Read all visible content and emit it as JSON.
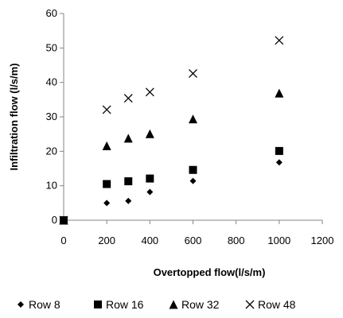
{
  "chart_data": {
    "type": "scatter",
    "title": "",
    "xlabel": "Overtopped flow(l/s/m)",
    "ylabel": "Infiltration flow (l/s/m)",
    "xlim": [
      0,
      1200
    ],
    "ylim": [
      0,
      60
    ],
    "xticks": [
      0,
      200,
      400,
      600,
      800,
      1000,
      1200
    ],
    "yticks": [
      0,
      10,
      20,
      30,
      40,
      50,
      60
    ],
    "grid": false,
    "legend_position": "bottom",
    "series": [
      {
        "name": "Row 8",
        "marker": "diamond",
        "color": "#000000",
        "x": [
          0,
          200,
          300,
          400,
          600,
          1000
        ],
        "y": [
          0,
          5,
          5.6,
          8.2,
          11.4,
          16.8
        ]
      },
      {
        "name": "Row 16",
        "marker": "square",
        "color": "#000000",
        "x": [
          0,
          200,
          300,
          400,
          600,
          1000
        ],
        "y": [
          0,
          10.5,
          11.3,
          12.1,
          14.6,
          20.1
        ]
      },
      {
        "name": "Row 32",
        "marker": "triangle",
        "color": "#000000",
        "x": [
          0,
          200,
          300,
          400,
          600,
          1000
        ],
        "y": [
          0,
          21.6,
          23.8,
          25.1,
          29.4,
          36.9
        ]
      },
      {
        "name": "Row 48",
        "marker": "cross",
        "color": "#000000",
        "x": [
          0,
          200,
          300,
          400,
          600,
          1000
        ],
        "y": [
          0,
          32.1,
          35.4,
          37.2,
          42.6,
          52.2
        ]
      }
    ]
  }
}
